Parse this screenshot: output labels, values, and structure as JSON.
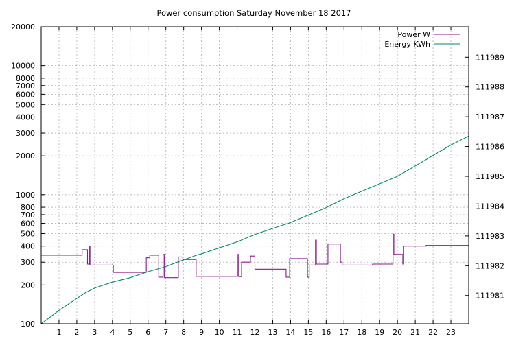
{
  "chart_data": {
    "type": "line",
    "title": "Power consumption Saturday November 18 2017",
    "xlabel": "",
    "ylabel": "",
    "y2label": "",
    "grid": true,
    "legend_position": "top-right",
    "xlim": [
      0,
      24
    ],
    "x_ticks": [
      1,
      2,
      3,
      4,
      5,
      6,
      7,
      8,
      9,
      10,
      11,
      12,
      13,
      14,
      15,
      16,
      17,
      18,
      19,
      20,
      21,
      22,
      23
    ],
    "ylim": [
      100,
      20000
    ],
    "y_scale": "log",
    "y_ticks": [
      100,
      200,
      300,
      400,
      500,
      600,
      700,
      800,
      1000,
      2000,
      3000,
      4000,
      5000,
      6000,
      7000,
      8000,
      10000,
      20000
    ],
    "y2lim": [
      111980.05,
      111990.02
    ],
    "y2_ticks": [
      111981,
      111982,
      111983,
      111984,
      111985,
      111986,
      111987,
      111988,
      111989
    ],
    "series": [
      {
        "name": "Power W",
        "axis": "y",
        "color": "#8b1a8b",
        "step": true,
        "points": [
          [
            0,
            340
          ],
          [
            2.3,
            340
          ],
          [
            2.3,
            375
          ],
          [
            2.6,
            375
          ],
          [
            2.6,
            290
          ],
          [
            2.72,
            290
          ],
          [
            2.72,
            400
          ],
          [
            2.74,
            400
          ],
          [
            2.74,
            285
          ],
          [
            4.05,
            285
          ],
          [
            4.05,
            250
          ],
          [
            5.9,
            250
          ],
          [
            5.9,
            325
          ],
          [
            6.1,
            325
          ],
          [
            6.1,
            340
          ],
          [
            6.6,
            340
          ],
          [
            6.6,
            230
          ],
          [
            6.85,
            230
          ],
          [
            6.85,
            345
          ],
          [
            6.92,
            345
          ],
          [
            6.92,
            228
          ],
          [
            7.7,
            228
          ],
          [
            7.7,
            330
          ],
          [
            7.95,
            330
          ],
          [
            7.95,
            315
          ],
          [
            8.7,
            315
          ],
          [
            8.7,
            233
          ],
          [
            11.05,
            233
          ],
          [
            11.05,
            345
          ],
          [
            11.1,
            345
          ],
          [
            11.1,
            232
          ],
          [
            11.25,
            232
          ],
          [
            11.25,
            300
          ],
          [
            11.75,
            300
          ],
          [
            11.75,
            335
          ],
          [
            12.0,
            335
          ],
          [
            12.0,
            265
          ],
          [
            13.75,
            265
          ],
          [
            13.75,
            230
          ],
          [
            13.95,
            230
          ],
          [
            13.95,
            320
          ],
          [
            14.95,
            320
          ],
          [
            14.95,
            230
          ],
          [
            15.05,
            230
          ],
          [
            15.05,
            285
          ],
          [
            15.4,
            285
          ],
          [
            15.4,
            445
          ],
          [
            15.45,
            445
          ],
          [
            15.45,
            290
          ],
          [
            16.1,
            290
          ],
          [
            16.1,
            415
          ],
          [
            16.8,
            415
          ],
          [
            16.8,
            300
          ],
          [
            16.9,
            300
          ],
          [
            16.9,
            285
          ],
          [
            18.6,
            285
          ],
          [
            18.6,
            290
          ],
          [
            19.75,
            290
          ],
          [
            19.75,
            495
          ],
          [
            19.8,
            495
          ],
          [
            19.8,
            345
          ],
          [
            20.3,
            345
          ],
          [
            20.3,
            290
          ],
          [
            20.35,
            290
          ],
          [
            20.35,
            400
          ],
          [
            21.6,
            400
          ],
          [
            21.6,
            405
          ],
          [
            24,
            405
          ]
        ]
      },
      {
        "name": "Energy KWh",
        "axis": "y2",
        "color": "#008b6b",
        "step": false,
        "points": [
          [
            0,
            111980.05
          ],
          [
            1,
            111980.5
          ],
          [
            2,
            111980.9
          ],
          [
            2.5,
            111981.1
          ],
          [
            3,
            111981.25
          ],
          [
            4,
            111981.45
          ],
          [
            5,
            111981.6
          ],
          [
            6,
            111981.8
          ],
          [
            7,
            111981.97
          ],
          [
            8,
            111982.2
          ],
          [
            8.7,
            111982.35
          ],
          [
            9,
            111982.4
          ],
          [
            10,
            111982.6
          ],
          [
            11,
            111982.8
          ],
          [
            12,
            111983.05
          ],
          [
            13,
            111983.25
          ],
          [
            14,
            111983.45
          ],
          [
            15,
            111983.7
          ],
          [
            16,
            111983.95
          ],
          [
            17,
            111984.25
          ],
          [
            18,
            111984.5
          ],
          [
            19,
            111984.75
          ],
          [
            20,
            111985.0
          ],
          [
            21,
            111985.35
          ],
          [
            22,
            111985.7
          ],
          [
            23,
            111986.05
          ],
          [
            24,
            111986.35
          ]
        ]
      }
    ]
  }
}
